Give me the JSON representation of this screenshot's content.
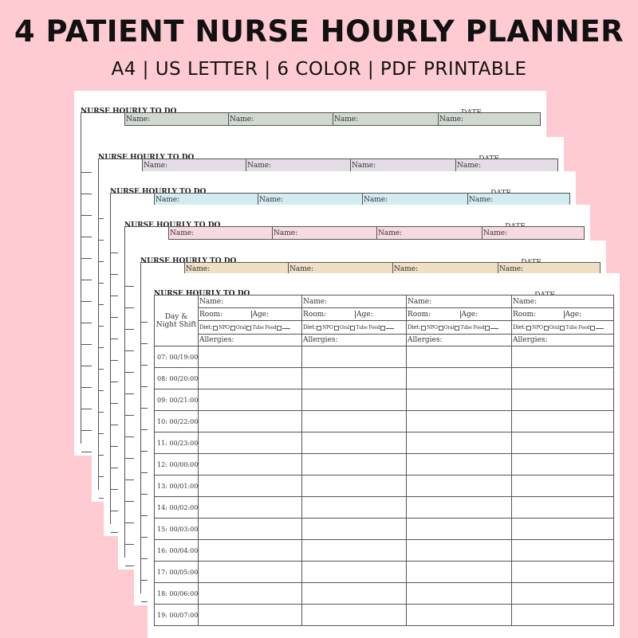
{
  "header": {
    "title": "4 PATIENT NURSE HOURLY PLANNER",
    "subtitle": "A4 | US LETTER | 6 COLOR | PDF PRINTABLE"
  },
  "planner": {
    "sheet_title": "NURSE HOURLY TO DO",
    "date_label": "DATE",
    "shift_label": "Day & Night Shift",
    "name_label": "Name:",
    "room_label": "Room:",
    "age_label": "Age:",
    "diet_label": "Diet:",
    "diet_options": [
      "NPO",
      "Oral",
      "Tube Feed",
      ""
    ],
    "allergies_label": "Allergies:",
    "hours": [
      "07: 00/19:00",
      "08: 00/20:00",
      "09: 00/21:00",
      "10: 00/22:00",
      "11: 00/23:00",
      "12: 00/00:00",
      "13: 00/01:00",
      "14: 00/02:00",
      "15: 00/03:00",
      "16: 00/04:00",
      "17: 00/05:00",
      "18: 00/06:00",
      "19: 00/07:00"
    ]
  },
  "sheet_colors": [
    "#cfd9cf",
    "#e4dde6",
    "#d3ecf0",
    "#f7dadf",
    "#efdfc4",
    "#ffffff"
  ]
}
